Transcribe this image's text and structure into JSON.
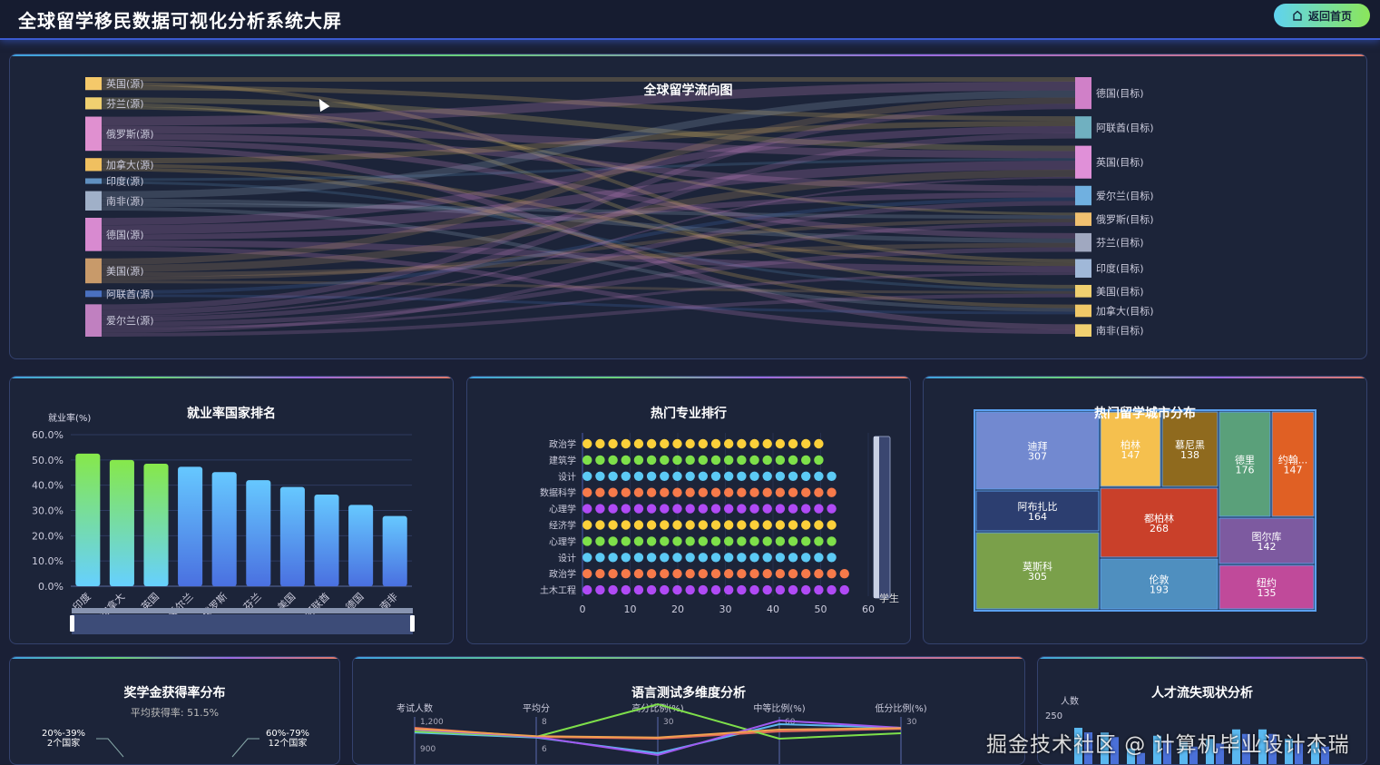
{
  "header": {
    "title": "全球留学移民数据可视化分析系统大屏",
    "home_button": "返回首页",
    "home_icon": "home-icon"
  },
  "sankey": {
    "title": "全球留学流向图",
    "sources": [
      {
        "name": "英国(源)",
        "value": 14,
        "color": "#f5c96a"
      },
      {
        "name": "芬兰(源)",
        "value": 13,
        "color": "#f0d070"
      },
      {
        "name": "俄罗斯(源)",
        "value": 37,
        "color": "#e090d0"
      },
      {
        "name": "加拿大(源)",
        "value": 14,
        "color": "#f0c060"
      },
      {
        "name": "印度(源)",
        "value": 6,
        "color": "#6090c0"
      },
      {
        "name": "南非(源)",
        "value": 21,
        "color": "#a0b0c8"
      },
      {
        "name": "德国(源)",
        "value": 36,
        "color": "#d88ad0"
      },
      {
        "name": "美国(源)",
        "value": 27,
        "color": "#c89a6a"
      },
      {
        "name": "阿联酋(源)",
        "value": 7,
        "color": "#4a70c0"
      },
      {
        "name": "爱尔兰(源)",
        "value": 35,
        "color": "#c080c0"
      }
    ],
    "targets": [
      {
        "name": "德国(目标)",
        "value": 36,
        "color": "#d080c8"
      },
      {
        "name": "阿联酋(目标)",
        "value": 25,
        "color": "#70b0c0"
      },
      {
        "name": "英国(目标)",
        "value": 37,
        "color": "#e090d8"
      },
      {
        "name": "爱尔兰(目标)",
        "value": 22,
        "color": "#70b0e0"
      },
      {
        "name": "俄罗斯(目标)",
        "value": 15,
        "color": "#f0c070"
      },
      {
        "name": "芬兰(目标)",
        "value": 21,
        "color": "#a0a8c0"
      },
      {
        "name": "印度(目标)",
        "value": 21,
        "color": "#a0b8d8"
      },
      {
        "name": "美国(目标)",
        "value": 14,
        "color": "#f0d070"
      },
      {
        "name": "加拿大(目标)",
        "value": 14,
        "color": "#f0c868"
      },
      {
        "name": "南非(目标)",
        "value": 14,
        "color": "#f0d070"
      }
    ],
    "links": [
      [
        0,
        0,
        5
      ],
      [
        0,
        6,
        4
      ],
      [
        0,
        1,
        5
      ],
      [
        1,
        2,
        6
      ],
      [
        1,
        7,
        4
      ],
      [
        1,
        4,
        3
      ],
      [
        2,
        0,
        10
      ],
      [
        2,
        2,
        8
      ],
      [
        2,
        3,
        7
      ],
      [
        2,
        5,
        6
      ],
      [
        2,
        9,
        6
      ],
      [
        3,
        1,
        6
      ],
      [
        3,
        6,
        4
      ],
      [
        3,
        8,
        4
      ],
      [
        4,
        2,
        3
      ],
      [
        4,
        7,
        3
      ],
      [
        5,
        0,
        8
      ],
      [
        5,
        5,
        5
      ],
      [
        5,
        4,
        4
      ],
      [
        5,
        8,
        4
      ],
      [
        6,
        1,
        8
      ],
      [
        6,
        2,
        10
      ],
      [
        6,
        3,
        6
      ],
      [
        6,
        6,
        7
      ],
      [
        6,
        9,
        5
      ],
      [
        7,
        0,
        7
      ],
      [
        7,
        2,
        8
      ],
      [
        7,
        5,
        5
      ],
      [
        7,
        4,
        4
      ],
      [
        7,
        7,
        3
      ],
      [
        8,
        3,
        4
      ],
      [
        8,
        8,
        3
      ],
      [
        9,
        0,
        6
      ],
      [
        9,
        1,
        6
      ],
      [
        9,
        2,
        2
      ],
      [
        9,
        3,
        5
      ],
      [
        9,
        5,
        5
      ],
      [
        9,
        6,
        3
      ],
      [
        9,
        4,
        4
      ],
      [
        9,
        7,
        4
      ]
    ]
  },
  "employment": {
    "title": "就业率国家排名",
    "chart_data": {
      "type": "bar",
      "ylabel": "就业率(%)",
      "ylim": [
        0,
        60
      ],
      "yticks": [
        "0.0%",
        "10.0%",
        "20.0%",
        "30.0%",
        "40.0%",
        "50.0%",
        "60.0%"
      ],
      "categories": [
        "印度",
        "加拿大",
        "英国",
        "爱尔兰",
        "俄罗斯",
        "芬兰",
        "美国",
        "阿联酋",
        "德国",
        "南非"
      ],
      "values": [
        52.5,
        50.0,
        48.5,
        47.3,
        45.2,
        42.0,
        39.3,
        36.3,
        32.2,
        27.8
      ],
      "highlight_top": 3,
      "colors": {
        "top": "#86e84a",
        "rest": "#66c8ff"
      }
    }
  },
  "majors": {
    "title": "热门专业排行",
    "chart_data": {
      "type": "pictorial-bar",
      "xlim": [
        0,
        60
      ],
      "xticks": [
        "0",
        "10",
        "20",
        "30",
        "40",
        "50",
        "60"
      ],
      "slider_label": "学生",
      "categories": [
        "政治学",
        "建筑学",
        "设计",
        "数据科学",
        "心理学",
        "经济学",
        "心理学",
        "设计",
        "政治学",
        "土木工程"
      ],
      "values": [
        50,
        50,
        52,
        52,
        52,
        52,
        52,
        52,
        55,
        55
      ],
      "colors": [
        "#fcd03a",
        "#7ee04a",
        "#5ccaf5",
        "#f77a4a",
        "#b04af5",
        "#fcd03a",
        "#7ee04a",
        "#5ccaf5",
        "#f77a4a",
        "#b04af5"
      ]
    }
  },
  "cities": {
    "title": "热门留学城市分布",
    "chart_data": {
      "type": "treemap",
      "items": [
        {
          "name": "迪拜",
          "value": 307,
          "color": "#7289d0"
        },
        {
          "name": "阿布扎比",
          "value": 164,
          "color": "#2c3e70"
        },
        {
          "name": "莫斯科",
          "value": 305,
          "color": "#7aa04a"
        },
        {
          "name": "柏林",
          "value": 147,
          "color": "#f5c04e"
        },
        {
          "name": "慕尼黑",
          "value": 138,
          "color": "#8f6a1e"
        },
        {
          "name": "都柏林",
          "value": 268,
          "color": "#c9402a"
        },
        {
          "name": "伦敦",
          "value": 193,
          "color": "#4f8fbf"
        },
        {
          "name": "德里",
          "value": 176,
          "color": "#5aa07a"
        },
        {
          "name": "约翰...",
          "value": 147,
          "color": "#e06024"
        },
        {
          "name": "图尔库",
          "value": 142,
          "color": "#7d5aa0"
        },
        {
          "name": "纽约",
          "value": 135,
          "color": "#c04a9a"
        }
      ]
    }
  },
  "scholarship": {
    "title": "奖学金获得率分布",
    "subtitle": "平均获得率: 51.5%",
    "labels": [
      {
        "range": "20%-39%",
        "count": "2个国家"
      },
      {
        "range": "60%-79%",
        "count": "12个国家"
      }
    ]
  },
  "language": {
    "title": "语言测试多维度分析",
    "chart_data": {
      "type": "parallel",
      "axes": [
        {
          "name": "考试人数",
          "ticks": [
            "1,200",
            "900"
          ]
        },
        {
          "name": "平均分",
          "ticks": [
            "8",
            "6"
          ]
        },
        {
          "name": "高分比例(%)",
          "ticks": [
            "30"
          ]
        },
        {
          "name": "中等比例(%)",
          "ticks": [
            "60"
          ]
        },
        {
          "name": "低分比例(%)",
          "ticks": [
            "30"
          ]
        }
      ],
      "series": [
        {
          "color": "#5cb8f0",
          "points": [
            0.72,
            0.58,
            0.15,
            0.95,
            0.85
          ]
        },
        {
          "color": "#e06a5a",
          "points": [
            0.85,
            0.6,
            0.55,
            0.75,
            0.82
          ]
        },
        {
          "color": "#7ee04a",
          "points": [
            0.75,
            0.6,
            1.5,
            0.55,
            0.7
          ]
        },
        {
          "color": "#a05af0",
          "points": [
            0.8,
            0.6,
            0.1,
            1.05,
            0.85
          ]
        },
        {
          "color": "#f0a050",
          "points": [
            0.82,
            0.62,
            0.58,
            0.8,
            0.84
          ]
        }
      ]
    }
  },
  "talent": {
    "title": "人才流失现状分析",
    "ylabel": "人数",
    "ytick": "250",
    "chart_data": {
      "type": "bar",
      "values": [
        270,
        255,
        205,
        245,
        225,
        235,
        265,
        265,
        235,
        225
      ],
      "colors": [
        "#5ab8f0",
        "#4a70d8"
      ]
    }
  },
  "watermark": "掘金技术社区 @ 计算机毕业设计杰瑞"
}
